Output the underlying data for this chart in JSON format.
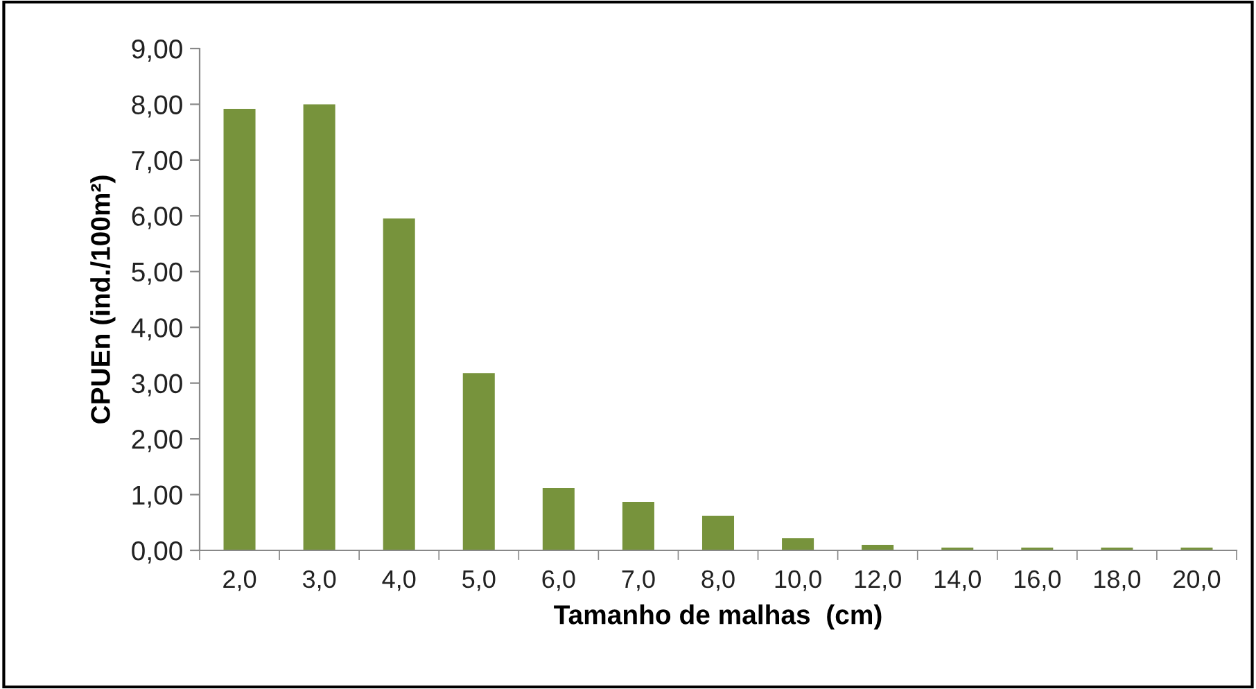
{
  "chart_data": {
    "type": "bar",
    "xlabel": "Tamanho de malhas  (cm)",
    "ylabel": "CPUEn (ind./100m²)",
    "categories": [
      "2,0",
      "3,0",
      "4,0",
      "5,0",
      "6,0",
      "7,0",
      "8,0",
      "10,0",
      "12,0",
      "14,0",
      "16,0",
      "18,0",
      "20,0"
    ],
    "values": [
      7.92,
      8.0,
      5.95,
      3.18,
      1.12,
      0.87,
      0.62,
      0.22,
      0.1,
      0.05,
      0.05,
      0.05,
      0.05
    ],
    "color": "#77933c",
    "ylim": [
      0,
      9
    ],
    "yticks": [
      {
        "value": 0,
        "label": "0,00"
      },
      {
        "value": 1,
        "label": "1,00"
      },
      {
        "value": 2,
        "label": "2,00"
      },
      {
        "value": 3,
        "label": "3,00"
      },
      {
        "value": 4,
        "label": "4,00"
      },
      {
        "value": 5,
        "label": "5,00"
      },
      {
        "value": 6,
        "label": "6,00"
      },
      {
        "value": 7,
        "label": "7,00"
      },
      {
        "value": 8,
        "label": "8,00"
      },
      {
        "value": 9,
        "label": "9,00"
      }
    ],
    "grid": false,
    "legend": false
  }
}
